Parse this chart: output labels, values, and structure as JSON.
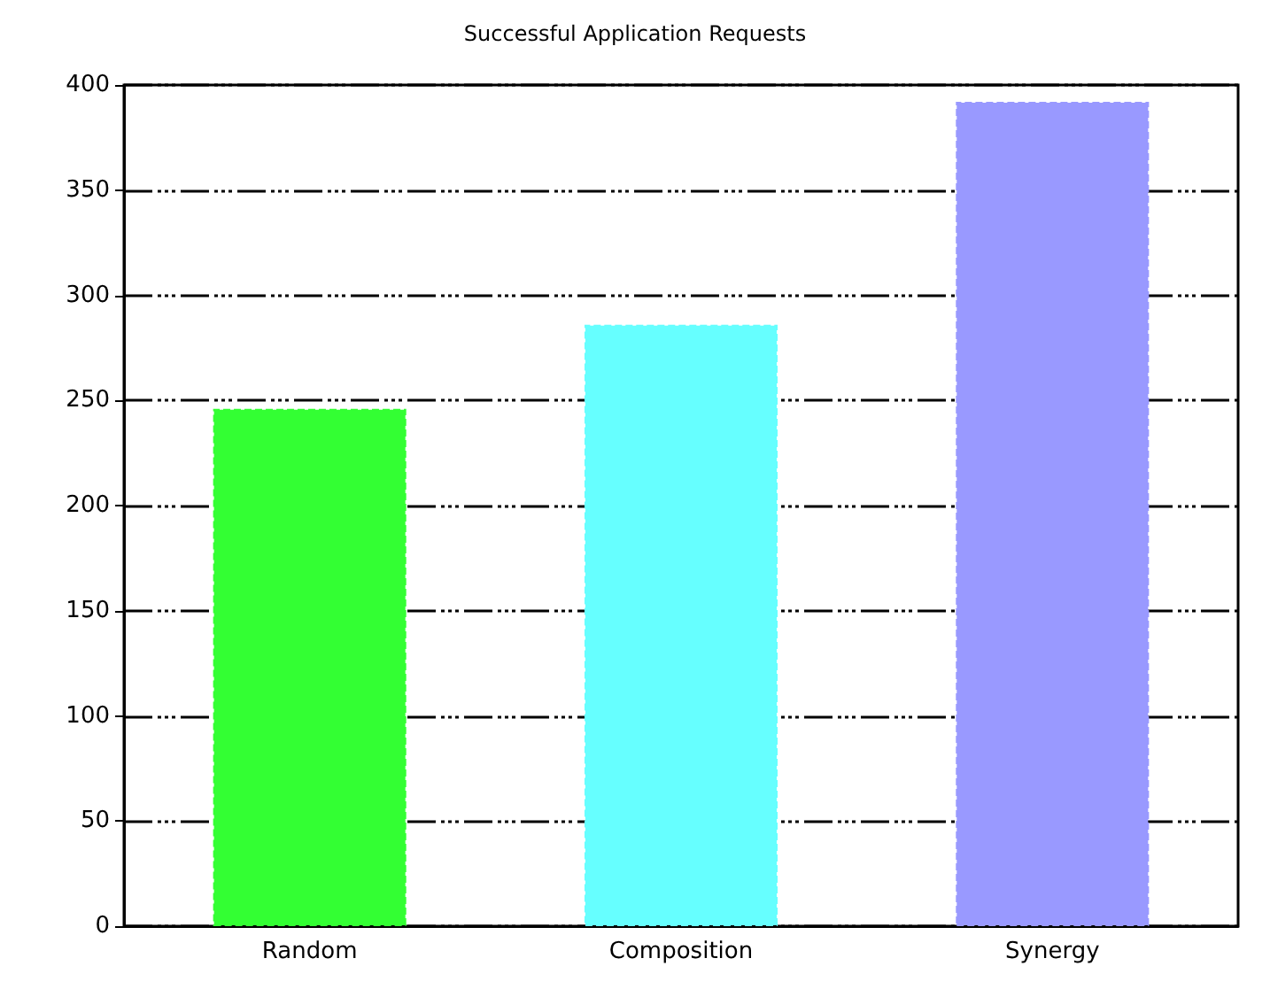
{
  "chart_data": {
    "type": "bar",
    "title": "Successful Application Requests",
    "categories": [
      "Random",
      "Composition",
      "Synergy"
    ],
    "values": [
      246,
      286,
      392
    ],
    "colors": [
      "#33ff33",
      "#66ffff",
      "#9999ff"
    ],
    "ylim": [
      0,
      400
    ],
    "yticks": [
      0,
      50,
      100,
      150,
      200,
      250,
      300,
      350,
      400
    ],
    "grid": "y"
  }
}
